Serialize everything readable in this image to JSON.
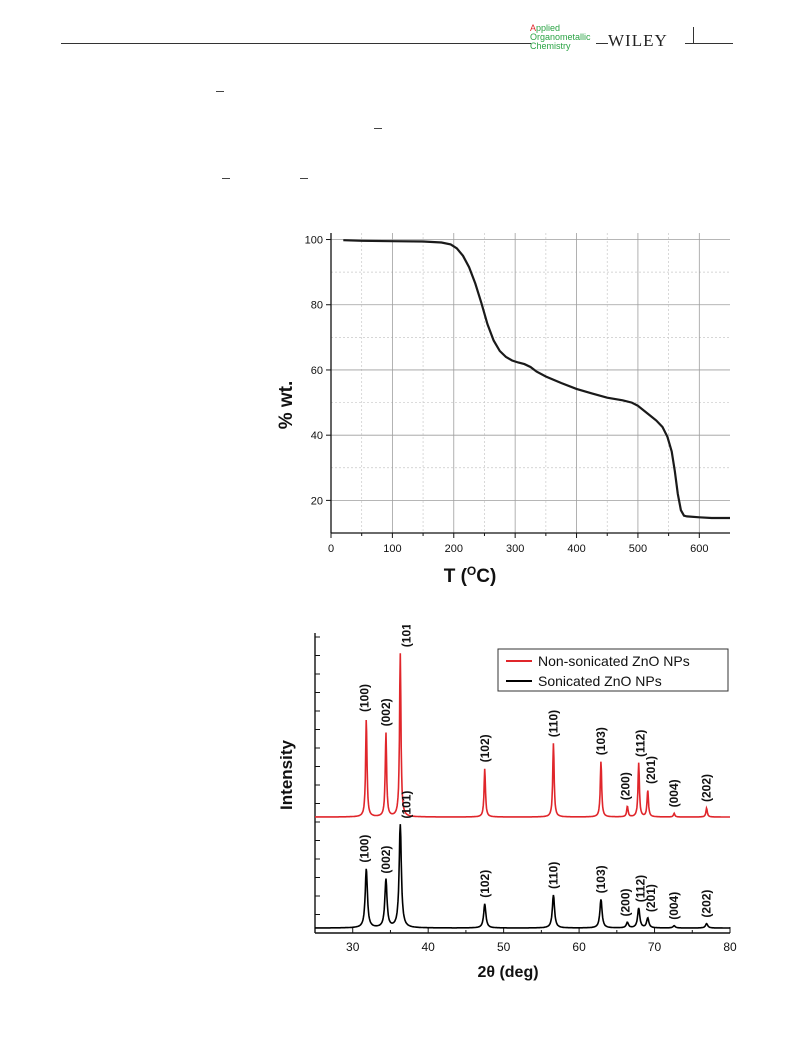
{
  "header": {
    "journal_line1_first": "A",
    "journal_line1_rest": "pplied",
    "journal_line2_first": "O",
    "journal_line2_rest": "rganometallic",
    "journal_line3_first": "C",
    "journal_line3_rest": "hemistry",
    "publisher": "WILEY"
  },
  "colors": {
    "tga_line": "#1a1a1a",
    "red_series": "#e0262b",
    "black_series": "#000000"
  },
  "chart_data": [
    {
      "type": "line",
      "title": "",
      "xlabel_main": "T (",
      "xlabel_sup": "O",
      "xlabel_end": "C)",
      "ylabel": "% wt.",
      "xlim": [
        0,
        650
      ],
      "ylim": [
        10,
        102
      ],
      "xticks": [
        0,
        100,
        200,
        300,
        400,
        500,
        600
      ],
      "yticks": [
        20,
        40,
        60,
        80,
        100
      ],
      "grid": true,
      "series": [
        {
          "x": [
            20,
            50,
            100,
            150,
            180,
            195,
            205,
            215,
            225,
            235,
            245,
            255,
            265,
            275,
            285,
            295,
            305,
            315,
            325,
            335,
            350,
            375,
            400,
            425,
            450,
            475,
            490,
            500,
            510,
            520,
            530,
            540,
            548,
            555,
            560,
            565,
            570,
            575,
            580,
            600,
            620,
            650
          ],
          "y": [
            99.8,
            99.6,
            99.5,
            99.4,
            99.1,
            98.5,
            97.3,
            95.0,
            91.5,
            86.5,
            80.5,
            74.0,
            69.0,
            65.8,
            64.0,
            62.9,
            62.3,
            61.8,
            60.9,
            59.5,
            58.0,
            56.0,
            54.2,
            52.8,
            51.5,
            50.7,
            50.0,
            49.0,
            47.5,
            46.0,
            44.5,
            42.5,
            39.5,
            35.0,
            29.0,
            22.0,
            17.0,
            15.3,
            15.1,
            14.8,
            14.6,
            14.6
          ]
        }
      ]
    },
    {
      "type": "line",
      "title": "",
      "xlabel": "2θ (deg)",
      "ylabel": "Intensity",
      "xlim": [
        25,
        80
      ],
      "xticks": [
        30,
        40,
        50,
        60,
        70,
        80
      ],
      "grid": false,
      "legend_position": "top-right",
      "peaks": [
        {
          "label": "(100)",
          "x": 31.8,
          "top_height": 0.55,
          "bottom_height": 0.54
        },
        {
          "label": "(002)",
          "x": 34.4,
          "top_height": 0.47,
          "bottom_height": 0.44
        },
        {
          "label": "(101)",
          "x": 36.3,
          "top_height": 0.91,
          "bottom_height": 0.94
        },
        {
          "label": "(102)",
          "x": 47.5,
          "top_height": 0.27,
          "bottom_height": 0.22
        },
        {
          "label": "(110)",
          "x": 56.6,
          "top_height": 0.41,
          "bottom_height": 0.3
        },
        {
          "label": "(103)",
          "x": 62.9,
          "top_height": 0.31,
          "bottom_height": 0.26
        },
        {
          "label": "(200)",
          "x": 66.4,
          "top_height": 0.06,
          "bottom_height": 0.05
        },
        {
          "label": "(112)",
          "x": 67.9,
          "top_height": 0.3,
          "bottom_height": 0.18
        },
        {
          "label": "(201)",
          "x": 69.1,
          "top_height": 0.15,
          "bottom_height": 0.09
        },
        {
          "label": "(004)",
          "x": 72.6,
          "top_height": 0.02,
          "bottom_height": 0.02
        },
        {
          "label": "(202)",
          "x": 76.9,
          "top_height": 0.05,
          "bottom_height": 0.04
        }
      ],
      "series": [
        {
          "name": "Non-sonicated ZnO NPs"
        },
        {
          "name": "Sonicated ZnO NPs"
        }
      ]
    }
  ]
}
